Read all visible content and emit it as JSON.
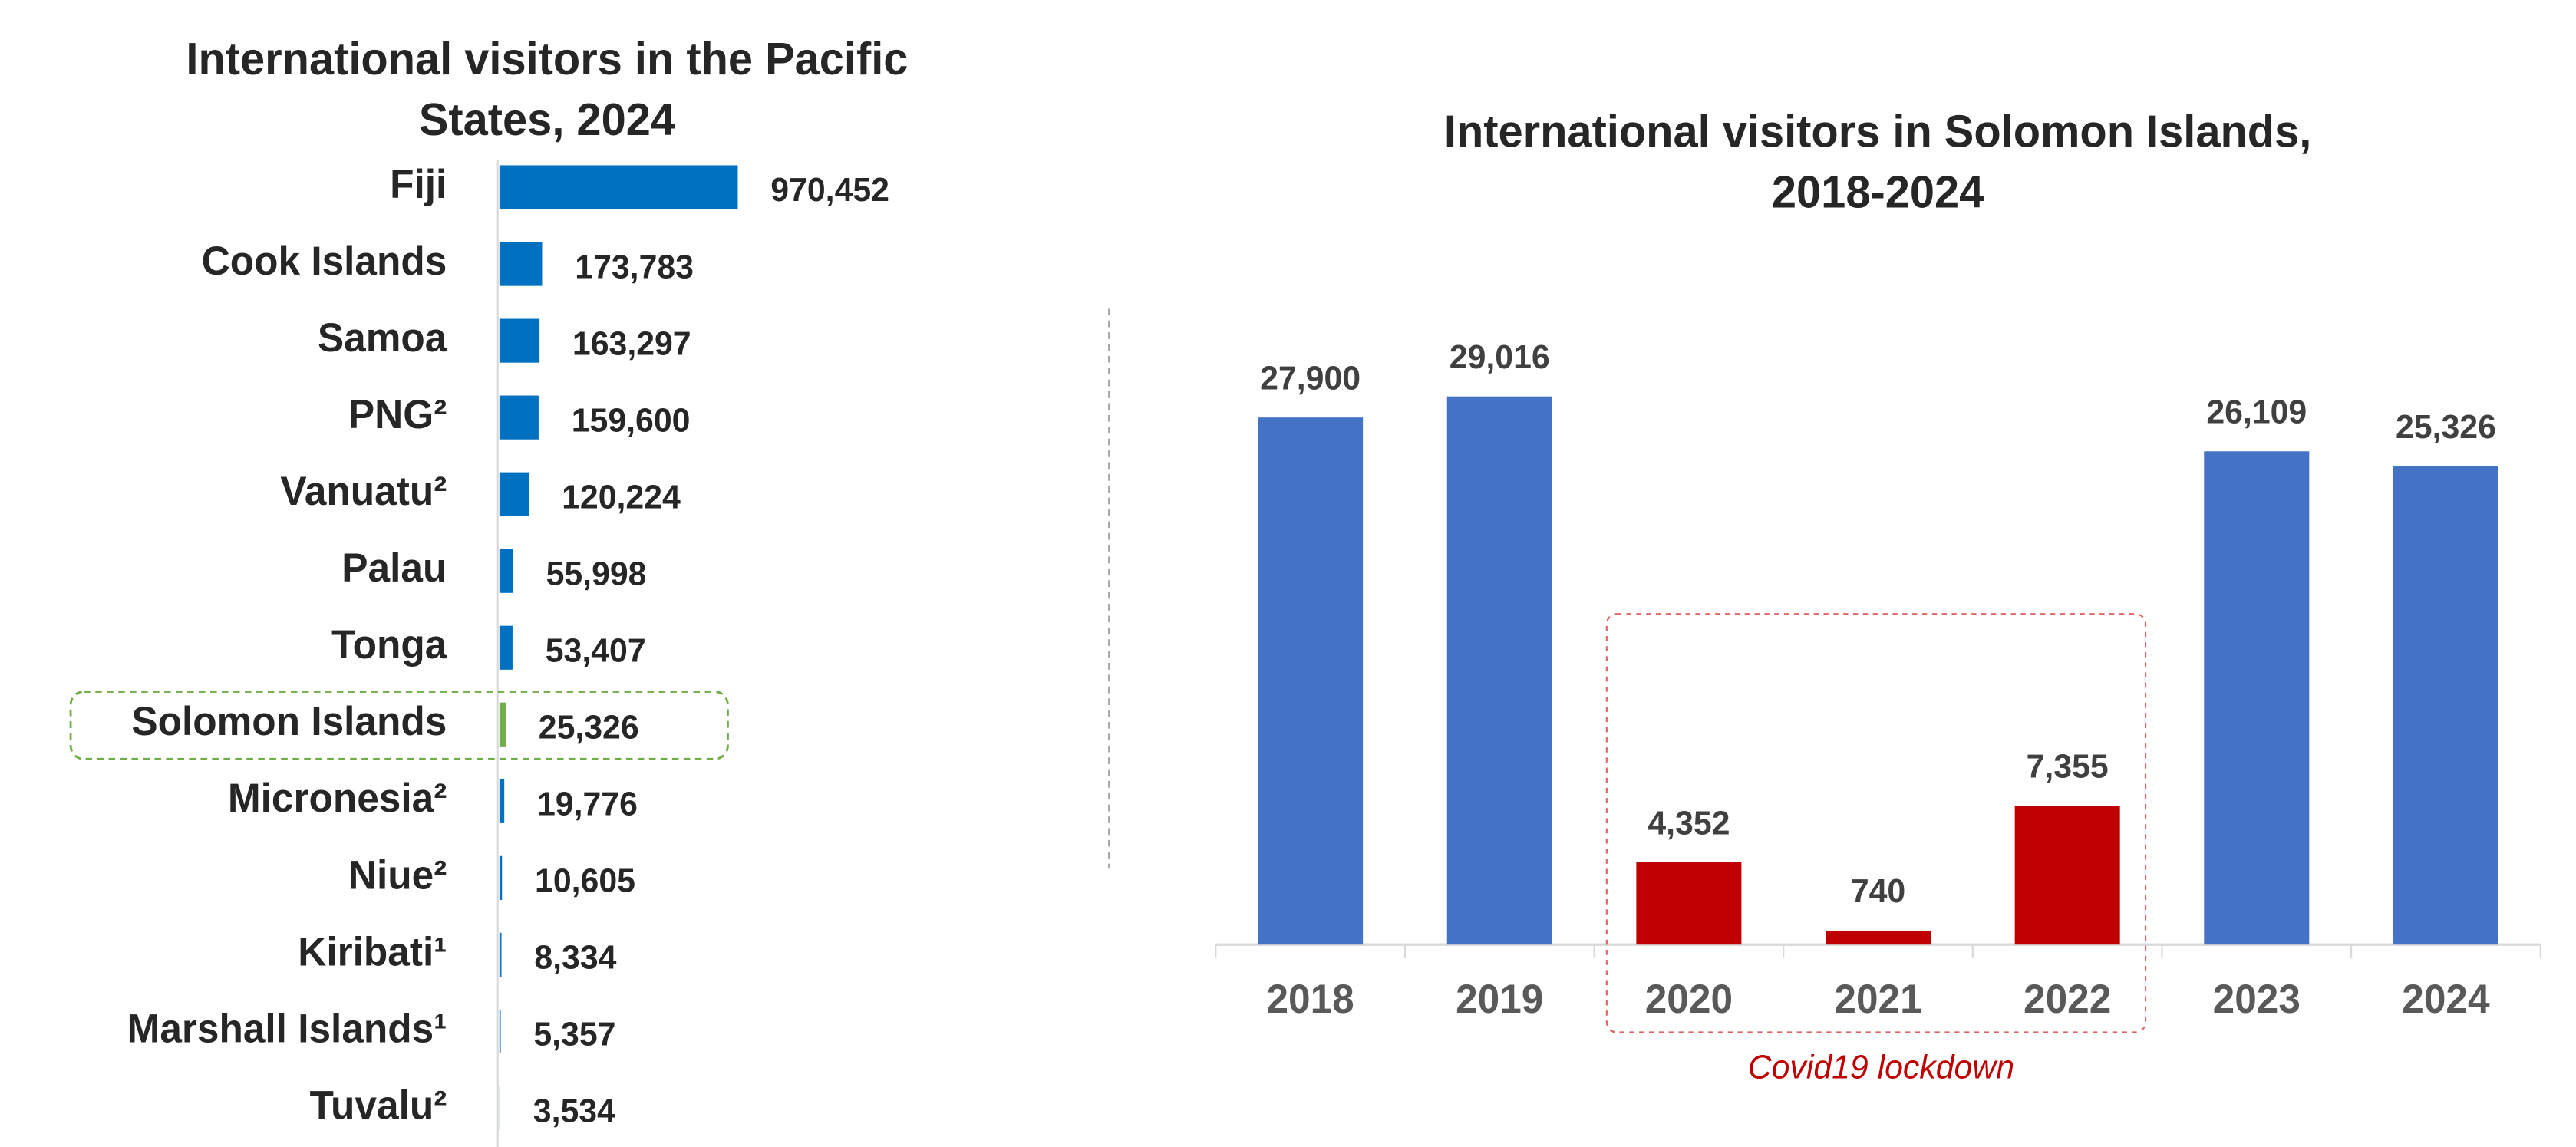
{
  "chart_data": [
    {
      "type": "hbar",
      "title": [
        "International visitors in the Pacific",
        "States, 2024"
      ],
      "categories": [
        "Fiji",
        "Cook Islands",
        "Samoa",
        "PNG²",
        "Vanuatu²",
        "Palau",
        "Tonga",
        "Solomon Islands",
        "Micronesia²",
        "Niue²",
        "Kiribati¹",
        "Marshall Islands¹",
        "Tuvalu²"
      ],
      "values": [
        970452,
        173783,
        163297,
        159600,
        120224,
        55998,
        53407,
        25326,
        19776,
        10605,
        8334,
        5357,
        3534
      ],
      "value_labels": [
        "970,452",
        "173,783",
        "163,297",
        "159,600",
        "120,224",
        "55,998",
        "53,407",
        "25,326",
        "19,776",
        "10,605",
        "8,334",
        "5,357",
        "3,534"
      ],
      "colors": [
        "#0070c0",
        "#0070c0",
        "#0070c0",
        "#0070c0",
        "#0070c0",
        "#0070c0",
        "#0070c0",
        "#70ad47",
        "#0070c0",
        "#0070c0",
        "#0070c0",
        "#0070c0",
        "#0070c0"
      ],
      "xlim": [
        0,
        1000000
      ]
    },
    {
      "type": "bar",
      "title": [
        "International visitors in Solomon Islands,",
        "2018-2024"
      ],
      "categories": [
        "2018",
        "2019",
        "2020",
        "2021",
        "2022",
        "2023",
        "2024"
      ],
      "values": [
        27900,
        29016,
        4352,
        740,
        7355,
        26109,
        25326
      ],
      "value_labels": [
        "27,900",
        "29,016",
        "4,352",
        "740",
        "7,355",
        "26,109",
        "25,326"
      ],
      "colors": [
        "#4472c4",
        "#4472c4",
        "#c00000",
        "#c00000",
        "#c00000",
        "#4472c4",
        "#4472c4"
      ],
      "ylim": [
        0,
        30000
      ],
      "annotation": "Covid19 lockdown"
    }
  ]
}
